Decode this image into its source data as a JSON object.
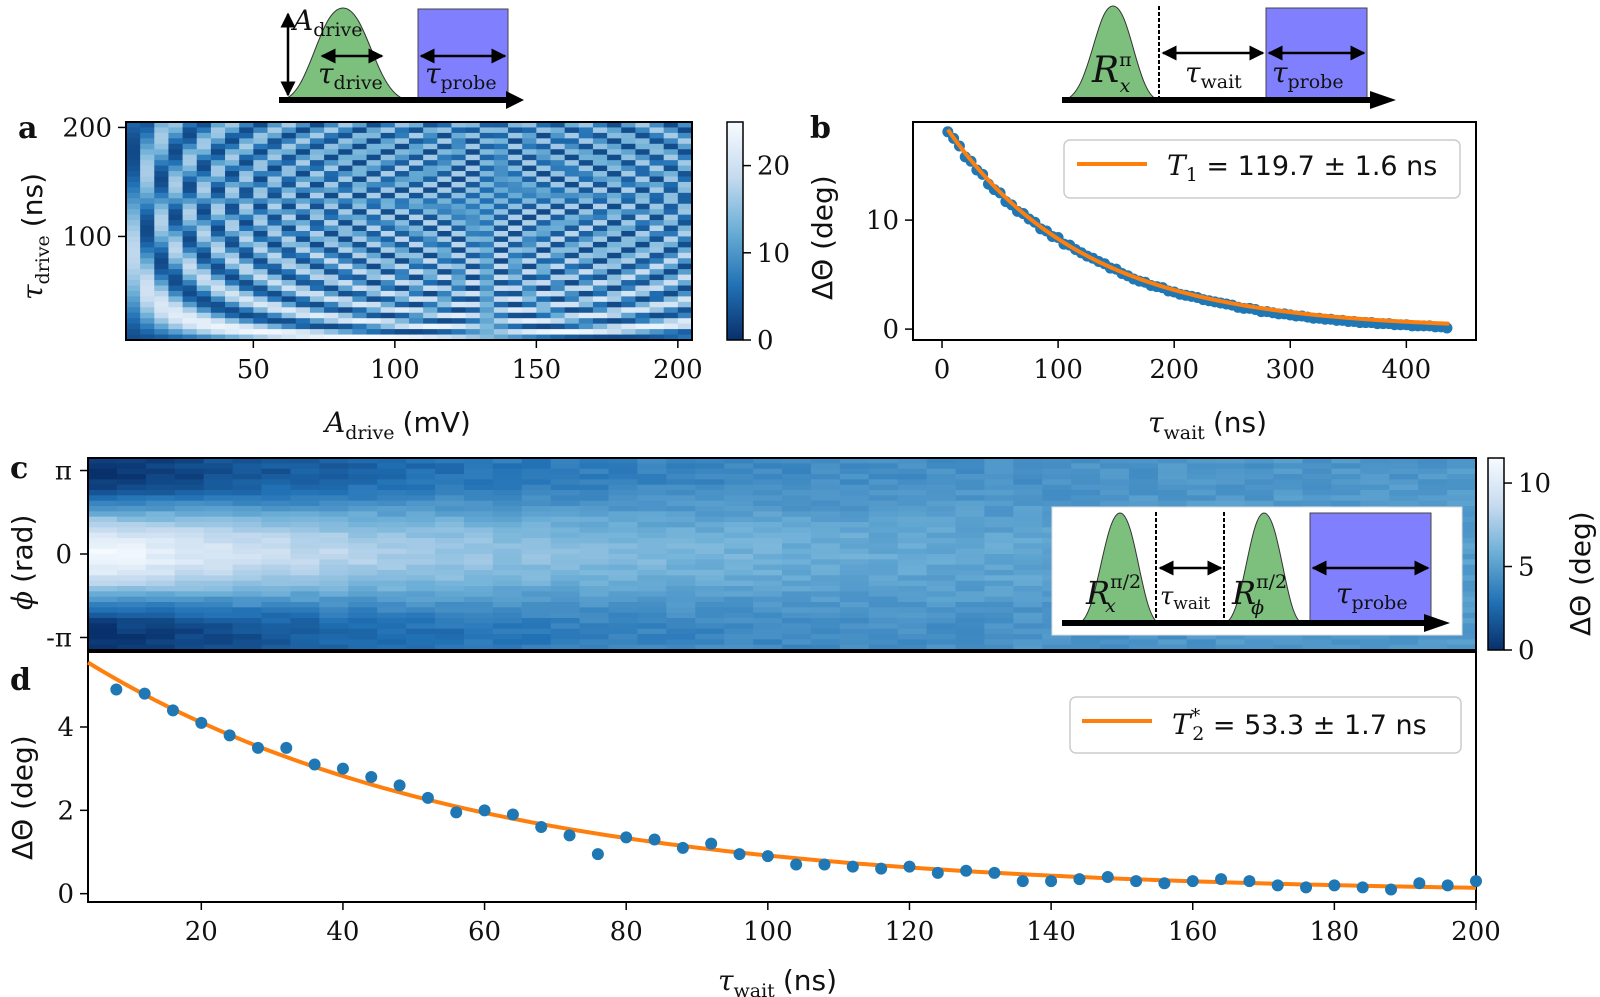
{
  "colors": {
    "data_point": "#1f77b4",
    "fit_line": "#ff7f0e",
    "gaussian_pulse": "#7dbf7d",
    "probe_pulse": "#8080ff",
    "cmap_low": "#08306b",
    "cmap_high": "#f7fbff"
  },
  "panels": {
    "a": {
      "label": "a"
    },
    "b": {
      "label": "b"
    },
    "c": {
      "label": "c"
    },
    "d": {
      "label": "d"
    }
  },
  "schematics": {
    "a": {
      "amp_label_main": "A",
      "amp_label_sub": "drive",
      "drive_label_main": "τ",
      "drive_label_sub": "drive",
      "probe_label_main": "τ",
      "probe_label_sub": "probe"
    },
    "b": {
      "pulse_label_main": "R",
      "pulse_label_sub": "x",
      "pulse_label_sup": "π",
      "wait_label_main": "τ",
      "wait_label_sub": "wait",
      "probe_label_main": "τ",
      "probe_label_sub": "probe"
    },
    "c": {
      "pulse1_main": "R",
      "pulse1_sub": "x",
      "pulse1_sup": "π/2",
      "wait_main": "τ",
      "wait_sub": "wait",
      "pulse2_main": "R",
      "pulse2_sub": "ϕ",
      "pulse2_sup": "π/2",
      "probe_main": "τ",
      "probe_sub": "probe"
    }
  },
  "chart_data": [
    {
      "id": "a",
      "type": "heatmap",
      "xlabel_main": "A",
      "xlabel_sub": "drive",
      "xlabel_unit": "(mV)",
      "ylabel_main": "τ",
      "ylabel_sub": "drive",
      "ylabel_unit": "(ns)",
      "xlim": [
        5,
        205
      ],
      "ylim": [
        5,
        205
      ],
      "xticks": [
        50,
        100,
        150,
        200
      ],
      "yticks": [
        100,
        200
      ],
      "colorbar": {
        "ticks": [
          0,
          10,
          20
        ],
        "range": [
          0,
          25
        ]
      },
      "description_note": "Rabi chevron: intensity oscillates with product A_drive × τ_drive"
    },
    {
      "id": "b",
      "type": "scatter",
      "xlabel_main": "τ",
      "xlabel_sub": "wait",
      "xlabel_unit": "(ns)",
      "ylabel": "ΔΘ (deg)",
      "xlim": [
        -25,
        460
      ],
      "ylim": [
        -1,
        19
      ],
      "xticks": [
        0,
        100,
        200,
        300,
        400
      ],
      "yticks": [
        0,
        10
      ],
      "legend": {
        "symbol": "T",
        "symbol_sub": "1",
        "text": " = 119.7 ± 1.6 ns",
        "position": "top-right"
      },
      "fit": {
        "type": "exp_decay",
        "amplitude": 18.3,
        "tau": 119.7,
        "x0": 5,
        "x_end": 437
      },
      "x": [
        5,
        10,
        15,
        20,
        25,
        30,
        35,
        40,
        45,
        50,
        55,
        60,
        65,
        70,
        75,
        80,
        85,
        90,
        95,
        100,
        105,
        110,
        115,
        120,
        125,
        130,
        135,
        140,
        145,
        150,
        155,
        160,
        165,
        170,
        175,
        180,
        185,
        190,
        195,
        200,
        205,
        210,
        215,
        220,
        225,
        230,
        235,
        240,
        245,
        250,
        255,
        260,
        265,
        270,
        275,
        280,
        285,
        290,
        295,
        300,
        305,
        310,
        315,
        320,
        325,
        330,
        335,
        340,
        345,
        350,
        355,
        360,
        365,
        370,
        375,
        380,
        385,
        390,
        395,
        400,
        405,
        410,
        415,
        420,
        425,
        430,
        435
      ],
      "y": [
        18.1,
        17.5,
        16.8,
        15.8,
        15.4,
        14.6,
        14.2,
        13.3,
        12.8,
        12.5,
        11.7,
        11.4,
        10.8,
        10.6,
        10.1,
        9.8,
        9.2,
        9.0,
        8.5,
        8.4,
        7.8,
        7.7,
        7.3,
        7.0,
        6.7,
        6.5,
        6.2,
        6.0,
        5.6,
        5.5,
        5.1,
        4.9,
        4.6,
        4.4,
        4.3,
        4.0,
        3.9,
        3.8,
        3.5,
        3.4,
        3.2,
        3.1,
        3.0,
        2.9,
        2.7,
        2.6,
        2.5,
        2.4,
        2.3,
        2.2,
        2.0,
        1.9,
        1.9,
        1.8,
        1.6,
        1.6,
        1.5,
        1.4,
        1.4,
        1.3,
        1.2,
        1.2,
        1.1,
        1.0,
        1.0,
        0.9,
        0.9,
        0.8,
        0.8,
        0.7,
        0.7,
        0.6,
        0.6,
        0.6,
        0.5,
        0.5,
        0.5,
        0.4,
        0.4,
        0.4,
        0.3,
        0.3,
        0.3,
        0.3,
        0.2,
        0.2,
        0.1
      ]
    },
    {
      "id": "c",
      "type": "heatmap",
      "ylabel_main": "ϕ",
      "ylabel_unit": "(rad)",
      "ytick_labels": [
        "π",
        "0",
        "-π"
      ],
      "colorbar": {
        "ticks": [
          0,
          5,
          10
        ],
        "range": [
          0,
          11.5
        ],
        "label": "ΔΘ (deg)"
      },
      "description_note": "Ramsey fringe vs phase ϕ and τ_wait (shared x-axis with panel d)"
    },
    {
      "id": "d",
      "type": "scatter",
      "xlabel_main": "τ",
      "xlabel_sub": "wait",
      "xlabel_unit": "(ns)",
      "ylabel": "ΔΘ (deg)",
      "xlim": [
        4,
        200
      ],
      "ylim": [
        -0.2,
        5.8
      ],
      "xticks": [
        20,
        40,
        60,
        80,
        100,
        120,
        140,
        160,
        180,
        200
      ],
      "yticks": [
        0,
        2,
        4
      ],
      "legend": {
        "symbol": "T",
        "symbol_sub": "2",
        "symbol_sup": "*",
        "text": " = 53.3 ± 1.7 ns",
        "position": "top-right"
      },
      "fit": {
        "type": "exp_decay",
        "amplitude": 5.98,
        "tau": 53.3,
        "x0": 0,
        "x_start": 4,
        "x_end": 200
      },
      "x": [
        8,
        12,
        16,
        20,
        24,
        28,
        32,
        36,
        40,
        44,
        48,
        52,
        56,
        60,
        64,
        68,
        72,
        76,
        80,
        84,
        88,
        92,
        96,
        100,
        104,
        108,
        112,
        116,
        120,
        124,
        128,
        132,
        136,
        140,
        144,
        148,
        152,
        156,
        160,
        164,
        168,
        172,
        176,
        180,
        184,
        188,
        192,
        196,
        200
      ],
      "y": [
        4.9,
        4.8,
        4.4,
        4.1,
        3.8,
        3.5,
        3.5,
        3.1,
        3.0,
        2.8,
        2.6,
        2.3,
        1.95,
        2.0,
        1.9,
        1.6,
        1.4,
        0.95,
        1.35,
        1.3,
        1.1,
        1.2,
        0.95,
        0.9,
        0.7,
        0.7,
        0.65,
        0.6,
        0.65,
        0.5,
        0.55,
        0.5,
        0.3,
        0.3,
        0.35,
        0.4,
        0.3,
        0.25,
        0.3,
        0.35,
        0.3,
        0.2,
        0.15,
        0.2,
        0.15,
        0.1,
        0.25,
        0.2,
        0.3
      ]
    }
  ]
}
